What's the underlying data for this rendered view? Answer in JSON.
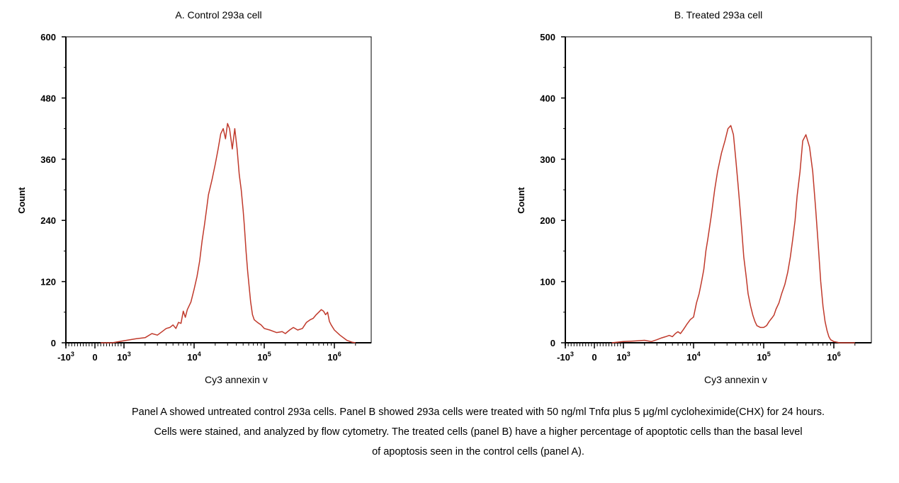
{
  "chart_data": [
    {
      "type": "line",
      "title": "A. Control 293a cell",
      "xlabel": "Cy3 annexin v",
      "ylabel": "Count",
      "x_scale": "biexponential",
      "ylim": [
        0,
        600
      ],
      "yticks": [
        "0",
        "120",
        "240",
        "360",
        "480",
        "600"
      ],
      "xticks": [
        {
          "label_base": "-10",
          "label_exp": "3",
          "value": -1000
        },
        {
          "label_base": "0",
          "label_exp": "",
          "value": 0
        },
        {
          "label_base": "10",
          "label_exp": "3",
          "value": 1000
        },
        {
          "label_base": "10",
          "label_exp": "4",
          "value": 10000
        },
        {
          "label_base": "10",
          "label_exp": "5",
          "value": 100000
        },
        {
          "label_base": "10",
          "label_exp": "6",
          "value": 1000000
        }
      ],
      "grid": false,
      "color": "#c0392b",
      "series": [
        {
          "x": [
            200,
            600,
            1000,
            1500,
            2000,
            2500,
            3000,
            3500,
            4000,
            4500,
            5000,
            5500,
            6000,
            6500,
            7000,
            7500,
            8000,
            9000,
            10000,
            11000,
            12000,
            13000,
            14000,
            15000,
            16000,
            18000,
            20000,
            22000,
            24000,
            26000,
            28000,
            30000,
            32000,
            35000,
            38000,
            41000,
            44000,
            47000,
            50000,
            52000,
            55000,
            58000,
            61000,
            64000,
            68000,
            72000,
            80000,
            90000,
            100000,
            120000,
            150000,
            180000,
            200000,
            230000,
            260000,
            300000,
            350000,
            400000,
            450000,
            500000,
            550000,
            600000,
            650000,
            700000,
            750000,
            800000,
            850000,
            900000,
            1000000,
            1200000,
            1500000,
            1800000,
            2000000
          ],
          "y": [
            0,
            0,
            4,
            8,
            10,
            18,
            15,
            22,
            28,
            30,
            35,
            28,
            40,
            38,
            62,
            50,
            65,
            80,
            105,
            130,
            160,
            200,
            230,
            260,
            290,
            320,
            350,
            380,
            410,
            420,
            400,
            430,
            420,
            380,
            420,
            380,
            330,
            300,
            260,
            230,
            180,
            140,
            110,
            80,
            55,
            45,
            40,
            35,
            28,
            25,
            20,
            22,
            18,
            25,
            30,
            25,
            28,
            40,
            45,
            48,
            55,
            60,
            65,
            62,
            55,
            60,
            42,
            35,
            25,
            15,
            5,
            1,
            0
          ]
        }
      ]
    },
    {
      "type": "line",
      "title": "B.  Treated 293a cell",
      "xlabel": "Cy3 annexin v",
      "ylabel": "Count",
      "x_scale": "biexponential",
      "ylim": [
        0,
        500
      ],
      "yticks": [
        "0",
        "100",
        "200",
        "300",
        "400",
        "500"
      ],
      "xticks": [
        {
          "label_base": "-10",
          "label_exp": "3",
          "value": -1000
        },
        {
          "label_base": "0",
          "label_exp": "",
          "value": 0
        },
        {
          "label_base": "10",
          "label_exp": "3",
          "value": 1000
        },
        {
          "label_base": "10",
          "label_exp": "4",
          "value": 10000
        },
        {
          "label_base": "10",
          "label_exp": "5",
          "value": 100000
        },
        {
          "label_base": "10",
          "label_exp": "6",
          "value": 1000000
        }
      ],
      "grid": false,
      "color": "#c0392b",
      "series": [
        {
          "x": [
            600,
            1000,
            1500,
            2000,
            2500,
            3000,
            3500,
            4000,
            4500,
            5000,
            5500,
            6000,
            6500,
            7000,
            7500,
            8000,
            9000,
            10000,
            11000,
            12000,
            13000,
            14000,
            15000,
            16000,
            18000,
            20000,
            22000,
            25000,
            28000,
            31000,
            34000,
            37000,
            40000,
            43000,
            46000,
            49000,
            52000,
            56000,
            60000,
            65000,
            70000,
            75000,
            80000,
            90000,
            100000,
            110000,
            120000,
            130000,
            140000,
            150000,
            165000,
            180000,
            200000,
            220000,
            240000,
            260000,
            280000,
            300000,
            330000,
            360000,
            400000,
            450000,
            500000,
            550000,
            600000,
            650000,
            700000,
            750000,
            800000,
            850000,
            900000,
            1000000,
            1100000,
            1200000,
            1400000,
            1600000,
            2000000
          ],
          "y": [
            0,
            2,
            3,
            4,
            2,
            5,
            8,
            10,
            12,
            10,
            15,
            18,
            15,
            20,
            25,
            30,
            38,
            42,
            65,
            80,
            100,
            120,
            150,
            170,
            210,
            250,
            280,
            310,
            330,
            350,
            355,
            340,
            300,
            260,
            220,
            180,
            140,
            110,
            80,
            60,
            45,
            35,
            28,
            25,
            25,
            28,
            35,
            40,
            45,
            55,
            65,
            80,
            95,
            115,
            140,
            170,
            200,
            240,
            280,
            330,
            340,
            320,
            280,
            220,
            160,
            100,
            60,
            35,
            20,
            10,
            5,
            2,
            1,
            0,
            0,
            0,
            0
          ]
        }
      ]
    }
  ],
  "caption": {
    "line1": "Panel A showed untreated control 293a cells. Panel B showed 293a cells were treated with 50 ng/ml Tnfα  plus 5  μg/ml cycloheximide(CHX)  for 24 hours.",
    "line2": "Cells were stained, and analyzed by flow cytometry. The treated cells (panel B) have a higher percentage of apoptotic cells than the basal level",
    "line3": "of apoptosis seen in the control cells (panel A)."
  }
}
